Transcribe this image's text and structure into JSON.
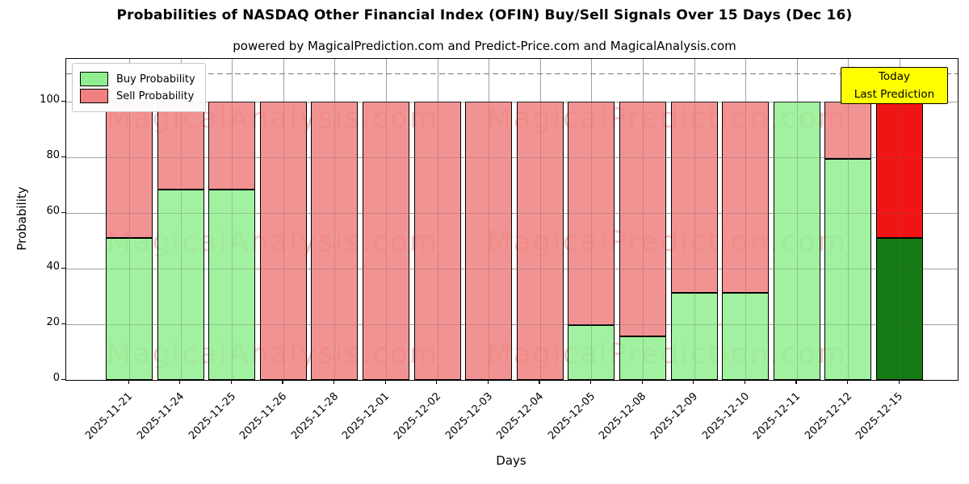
{
  "header": {
    "title": "Probabilities of NASDAQ Other Financial Index (OFIN) Buy/Sell Signals Over 15 Days (Dec 16)",
    "subtitle": "powered by MagicalPrediction.com and Predict-Price.com and MagicalAnalysis.com"
  },
  "chart_data": {
    "type": "bar",
    "stacked": true,
    "title": "Probabilities of NASDAQ Other Financial Index (OFIN) Buy/Sell Signals Over 15 Days (Dec 16)",
    "xlabel": "Days",
    "ylabel": "Probability",
    "categories": [
      "2025-11-21",
      "2025-11-24",
      "2025-11-25",
      "2025-11-26",
      "2025-11-28",
      "2025-12-01",
      "2025-12-02",
      "2025-12-03",
      "2025-12-04",
      "2025-12-05",
      "2025-12-08",
      "2025-12-09",
      "2025-12-10",
      "2025-12-11",
      "2025-12-12",
      "2025-12-15"
    ],
    "series": [
      {
        "name": "Buy Probability",
        "color": "#90ee90",
        "values": [
          51,
          68.5,
          68.5,
          0,
          0,
          0,
          0,
          0,
          0,
          19.6,
          15.7,
          31.4,
          31.4,
          100,
          79.4,
          51
        ]
      },
      {
        "name": "Sell Probability",
        "color": "#f08080",
        "values": [
          49,
          31.5,
          31.5,
          100,
          100,
          100,
          100,
          100,
          100,
          80.4,
          84.3,
          68.6,
          68.6,
          0,
          20.6,
          49
        ]
      }
    ],
    "last_bar_highlight": {
      "buy_color": "#007000",
      "sell_color": "#f00000"
    },
    "yticks": [
      0,
      20,
      40,
      60,
      80,
      100
    ],
    "ylim": [
      0,
      115.4
    ],
    "dashed_line_y": 110,
    "grid": true,
    "legend_position": "upper-left"
  },
  "today_box": {
    "line1": "Today",
    "line2": "Last Prediction",
    "bg_color": "#ffff00"
  },
  "watermarks": {
    "left": "MagicalAnalysis.com",
    "right": "MagicalPrediction.com"
  }
}
